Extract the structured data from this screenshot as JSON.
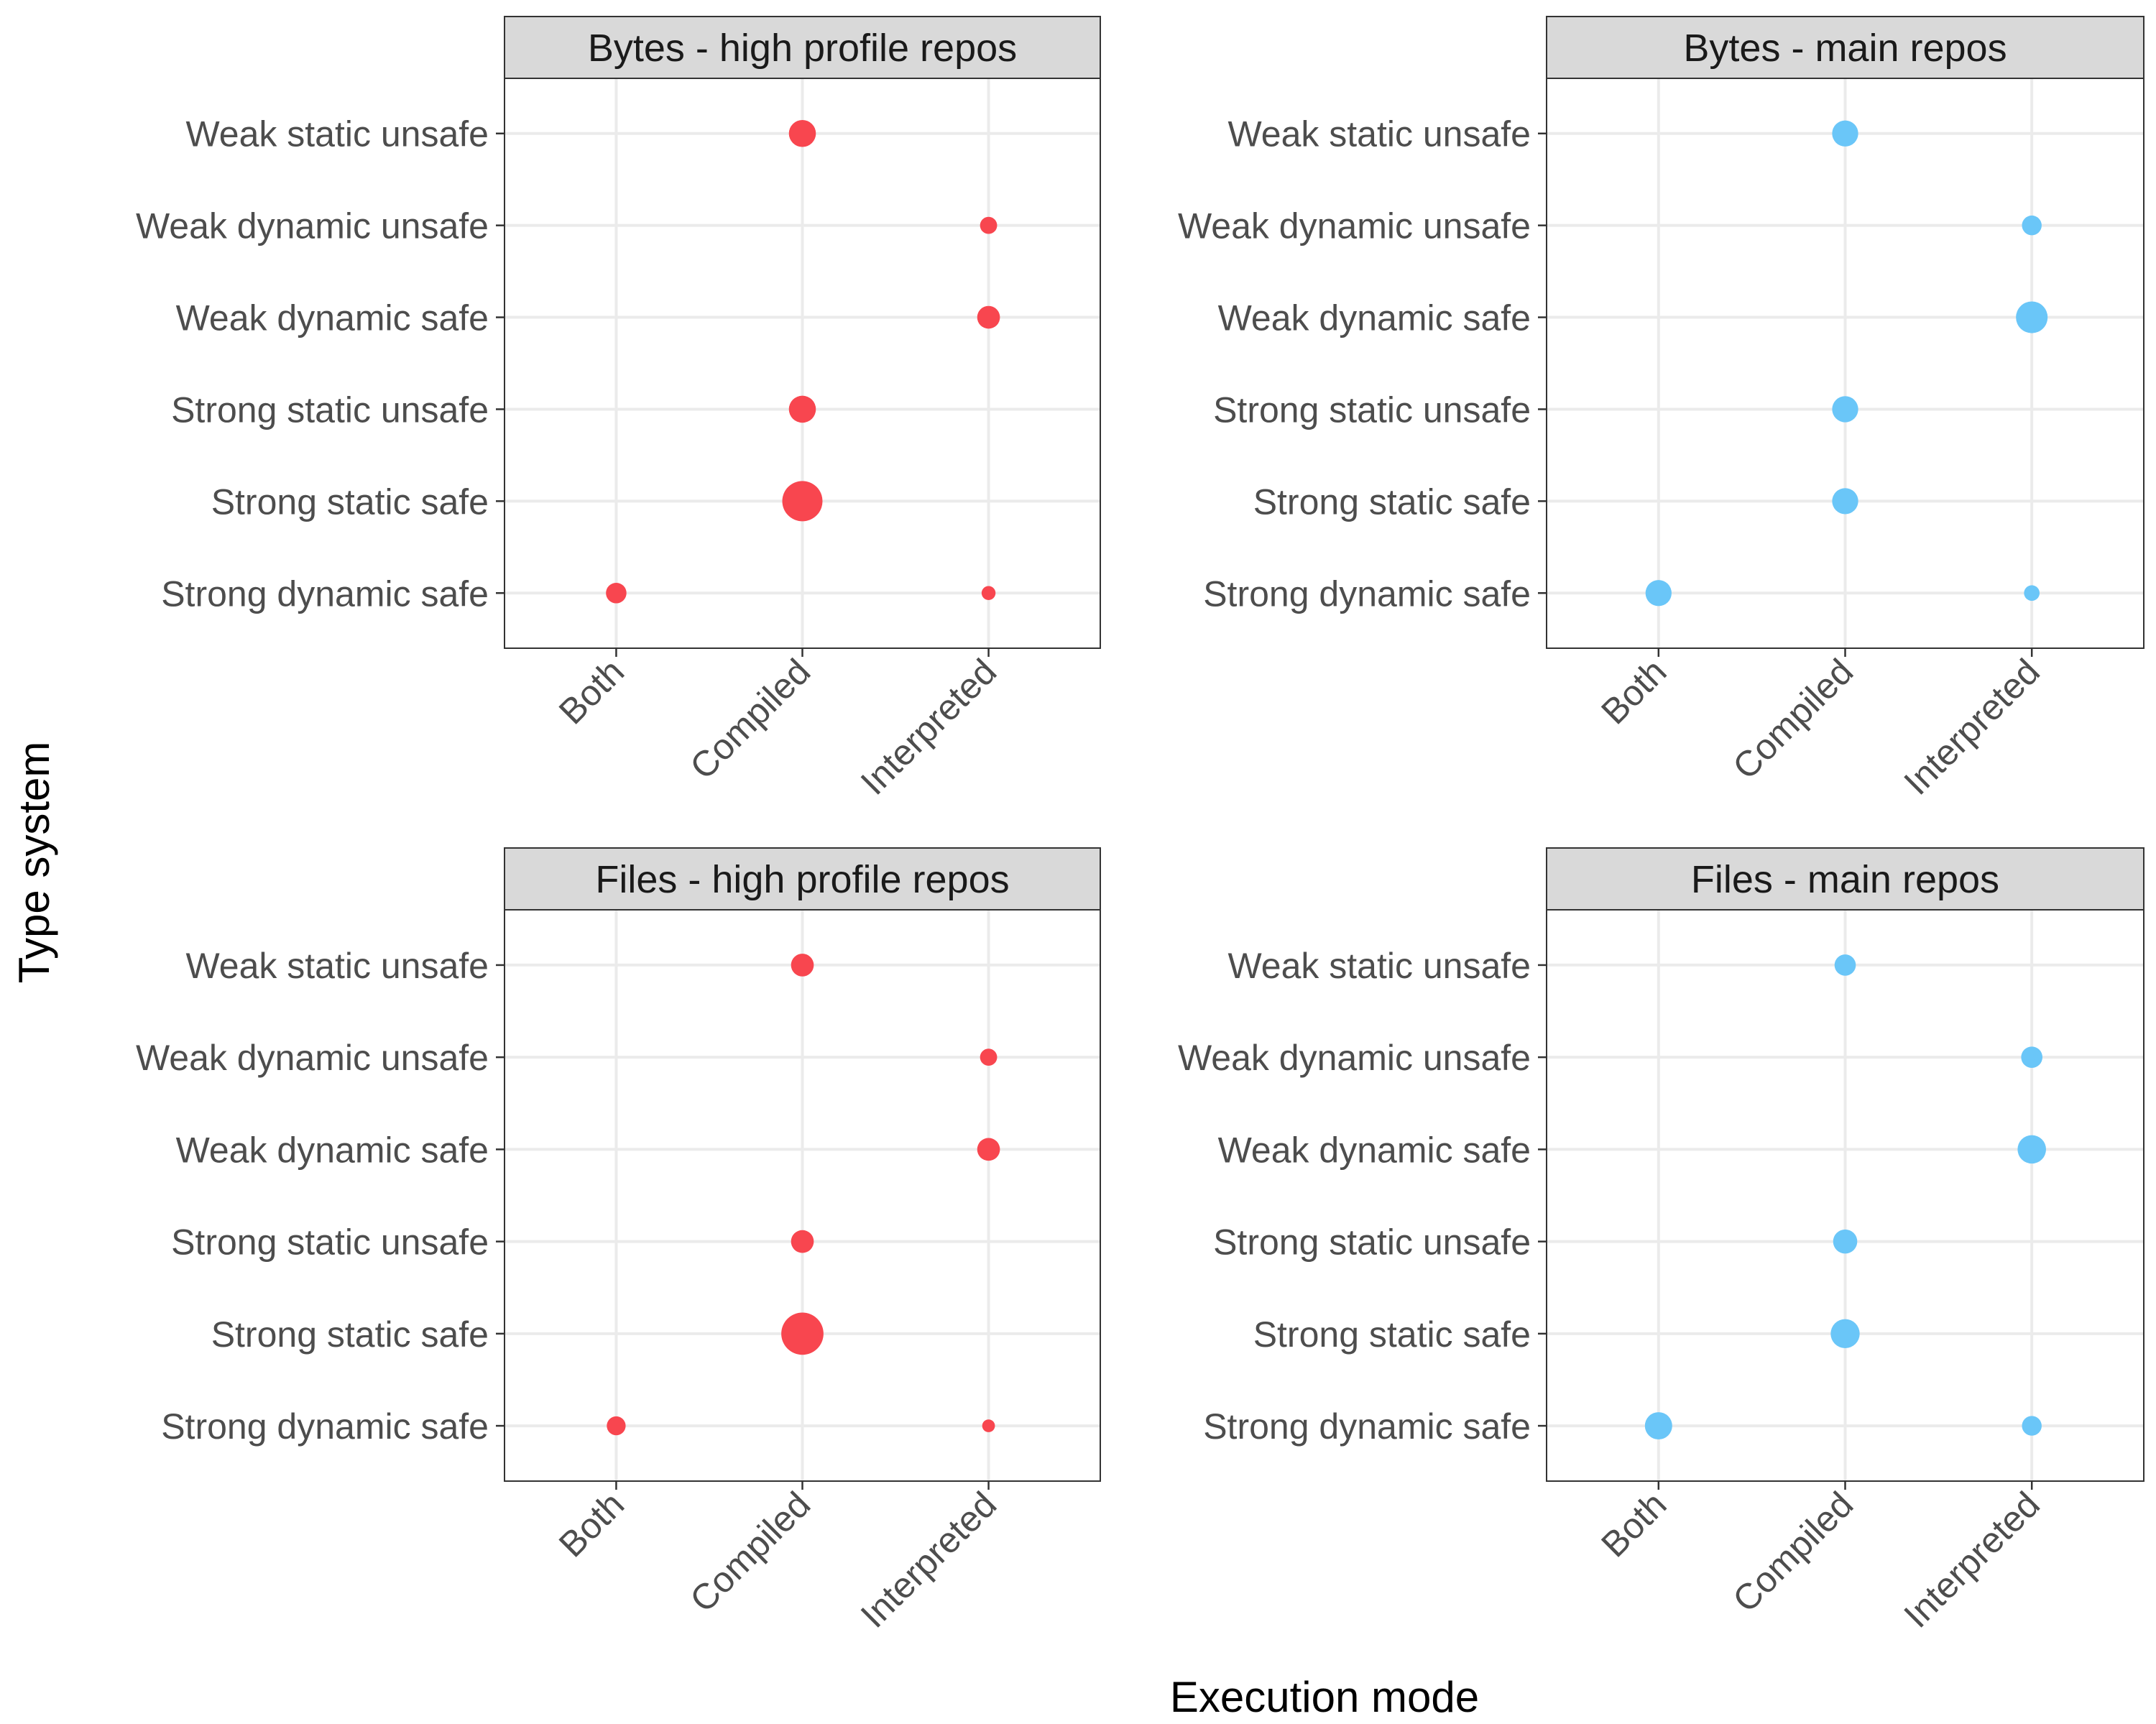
{
  "chart_data": {
    "type": "scatter",
    "xlabel": "Execution mode",
    "ylabel": "Type system",
    "x_categories": [
      "Both",
      "Compiled",
      "Interpreted"
    ],
    "y_categories": [
      "Strong dynamic safe",
      "Strong static safe",
      "Strong static unsafe",
      "Weak dynamic safe",
      "Weak dynamic unsafe",
      "Weak static unsafe"
    ],
    "size_encoding": "relative share (0-1 scale, estimated from point size)",
    "grid": true,
    "legend": "none",
    "panels": [
      {
        "title": "Bytes - high profile repos",
        "color": "#f8464f",
        "points": [
          {
            "x": "Compiled",
            "y": "Weak static unsafe",
            "size": 0.45
          },
          {
            "x": "Interpreted",
            "y": "Weak dynamic unsafe",
            "size": 0.18
          },
          {
            "x": "Interpreted",
            "y": "Weak dynamic safe",
            "size": 0.32
          },
          {
            "x": "Compiled",
            "y": "Strong static unsafe",
            "size": 0.45
          },
          {
            "x": "Compiled",
            "y": "Strong static safe",
            "size": 1.0
          },
          {
            "x": "Both",
            "y": "Strong dynamic safe",
            "size": 0.26
          },
          {
            "x": "Interpreted",
            "y": "Strong dynamic safe",
            "size": 0.12
          }
        ]
      },
      {
        "title": "Bytes - main repos",
        "color": "#6ac6f8",
        "points": [
          {
            "x": "Compiled",
            "y": "Weak static unsafe",
            "size": 0.42
          },
          {
            "x": "Interpreted",
            "y": "Weak dynamic unsafe",
            "size": 0.24
          },
          {
            "x": "Interpreted",
            "y": "Weak dynamic safe",
            "size": 0.62
          },
          {
            "x": "Compiled",
            "y": "Strong static unsafe",
            "size": 0.42
          },
          {
            "x": "Compiled",
            "y": "Strong static safe",
            "size": 0.42
          },
          {
            "x": "Both",
            "y": "Strong dynamic safe",
            "size": 0.42
          },
          {
            "x": "Interpreted",
            "y": "Strong dynamic safe",
            "size": 0.15
          }
        ]
      },
      {
        "title": "Files - high profile repos",
        "color": "#f8464f",
        "points": [
          {
            "x": "Compiled",
            "y": "Weak static unsafe",
            "size": 0.32
          },
          {
            "x": "Interpreted",
            "y": "Weak dynamic unsafe",
            "size": 0.18
          },
          {
            "x": "Interpreted",
            "y": "Weak dynamic safe",
            "size": 0.32
          },
          {
            "x": "Compiled",
            "y": "Strong static unsafe",
            "size": 0.32
          },
          {
            "x": "Compiled",
            "y": "Strong static safe",
            "size": 1.1
          },
          {
            "x": "Both",
            "y": "Strong dynamic safe",
            "size": 0.22
          },
          {
            "x": "Interpreted",
            "y": "Strong dynamic safe",
            "size": 0.1
          }
        ]
      },
      {
        "title": "Files - main repos",
        "color": "#6ac6f8",
        "points": [
          {
            "x": "Compiled",
            "y": "Weak static unsafe",
            "size": 0.28
          },
          {
            "x": "Interpreted",
            "y": "Weak dynamic unsafe",
            "size": 0.28
          },
          {
            "x": "Interpreted",
            "y": "Weak dynamic safe",
            "size": 0.5
          },
          {
            "x": "Compiled",
            "y": "Strong static unsafe",
            "size": 0.36
          },
          {
            "x": "Compiled",
            "y": "Strong static safe",
            "size": 0.52
          },
          {
            "x": "Both",
            "y": "Strong dynamic safe",
            "size": 0.46
          },
          {
            "x": "Interpreted",
            "y": "Strong dynamic safe",
            "size": 0.24
          }
        ]
      }
    ]
  }
}
